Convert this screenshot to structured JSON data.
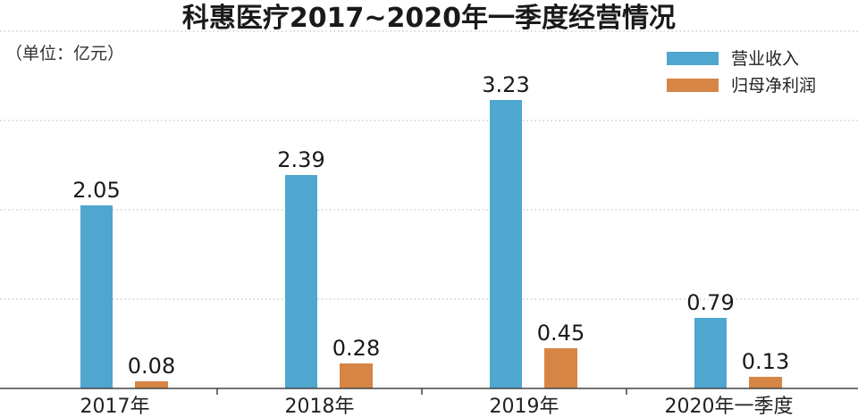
{
  "chart_data": {
    "type": "bar",
    "title": "科惠医疗2017~2020年一季度经营情况",
    "unit_label": "（单位：亿元）",
    "categories": [
      "2017年",
      "2018年",
      "2019年",
      "2020年一季度"
    ],
    "series": [
      {
        "name": "营业收入",
        "values": [
          2.05,
          2.39,
          3.23,
          0.79
        ],
        "color": "#4fa6cf"
      },
      {
        "name": "归母净利润",
        "values": [
          0.08,
          0.28,
          0.45,
          0.13
        ],
        "color": "#d78545"
      }
    ],
    "ylim": [
      0,
      4.0
    ],
    "grid": true,
    "grid_style": "dotted",
    "legend_position": "top-right"
  }
}
